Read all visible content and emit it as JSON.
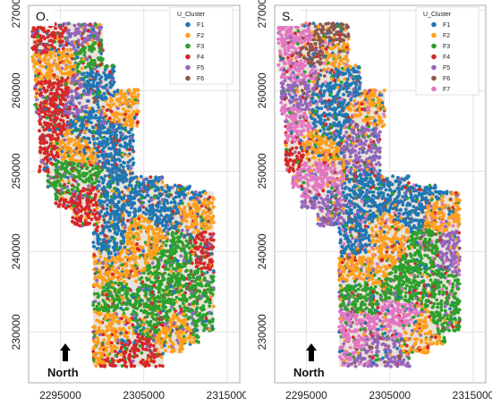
{
  "chart_data": [
    {
      "type": "scatter",
      "panel_label": "O.",
      "legend_title": "U_Cluster",
      "legend_placement": "top-right",
      "series": [
        {
          "name": "F1",
          "color": "#1f77b4"
        },
        {
          "name": "F2",
          "color": "#ff9f1c"
        },
        {
          "name": "F3",
          "color": "#2ca02c"
        },
        {
          "name": "F4",
          "color": "#d62728"
        },
        {
          "name": "F5",
          "color": "#9467bd"
        },
        {
          "name": "F6",
          "color": "#8c564b"
        }
      ],
      "x_ticks": [
        {
          "value": 2295000,
          "label": "2295000"
        },
        {
          "value": 2305000,
          "label": "2305000"
        },
        {
          "value": 2315000,
          "label": "2315000"
        }
      ],
      "y_ticks": [
        {
          "value": 230000,
          "label": "230000"
        },
        {
          "value": 240000,
          "label": "240000"
        },
        {
          "value": 250000,
          "label": "250000"
        },
        {
          "value": 260000,
          "label": "260000"
        },
        {
          "value": 270000,
          "label": "270000"
        }
      ],
      "grid": true,
      "north_label": "North"
    },
    {
      "type": "scatter",
      "panel_label": "S.",
      "legend_title": "U_Cluster",
      "legend_placement": "top-right",
      "series": [
        {
          "name": "F1",
          "color": "#1f77b4"
        },
        {
          "name": "F2",
          "color": "#ff9f1c"
        },
        {
          "name": "F3",
          "color": "#2ca02c"
        },
        {
          "name": "F4",
          "color": "#d62728"
        },
        {
          "name": "F5",
          "color": "#9467bd"
        },
        {
          "name": "F6",
          "color": "#8c564b"
        },
        {
          "name": "F7",
          "color": "#e377c2"
        }
      ],
      "x_ticks": [
        {
          "value": 2295000,
          "label": "2295000"
        },
        {
          "value": 2305000,
          "label": "2305000"
        },
        {
          "value": 2315000,
          "label": "2315000"
        }
      ],
      "y_ticks": [
        {
          "value": 230000,
          "label": "230000"
        },
        {
          "value": 240000,
          "label": "240000"
        },
        {
          "value": 250000,
          "label": "250000"
        },
        {
          "value": 260000,
          "label": "260000"
        },
        {
          "value": 270000,
          "label": "270000"
        }
      ],
      "grid": true,
      "north_label": "North"
    }
  ]
}
